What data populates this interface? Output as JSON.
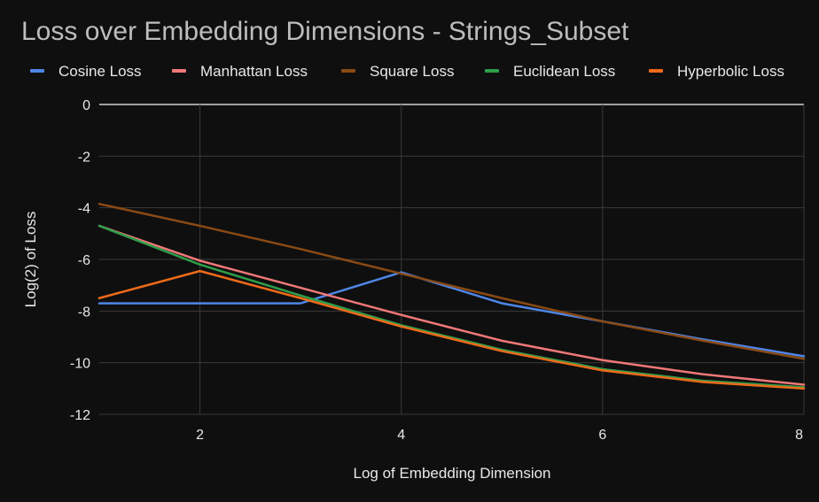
{
  "chart_data": {
    "type": "line",
    "title": "Loss over Embedding Dimensions - Strings_Subset",
    "xlabel": "Log of Embedding Dimension",
    "ylabel": "Log(2) of Loss",
    "x": [
      1,
      2,
      3,
      4,
      5,
      6,
      7,
      8
    ],
    "xlim": [
      1,
      8
    ],
    "ylim": [
      -12,
      0
    ],
    "xticks": [
      2,
      4,
      6,
      8
    ],
    "yticks": [
      0,
      -2,
      -4,
      -6,
      -8,
      -10,
      -12
    ],
    "grid": true,
    "legend_position": "top",
    "series": [
      {
        "name": "Cosine Loss",
        "color": "#4f86e8",
        "values": [
          -7.7,
          -7.7,
          -7.7,
          -6.5,
          -7.7,
          -8.4,
          -9.1,
          -9.75
        ]
      },
      {
        "name": "Manhattan Loss",
        "color": "#f07878",
        "values": [
          -4.7,
          -6.05,
          -7.1,
          -8.15,
          -9.15,
          -9.9,
          -10.45,
          -10.85
        ]
      },
      {
        "name": "Square Loss",
        "color": "#8a4a14",
        "values": [
          -3.85,
          -4.7,
          -5.6,
          -6.55,
          -7.5,
          -8.4,
          -9.15,
          -9.85
        ]
      },
      {
        "name": "Euclidean Loss",
        "color": "#2f9e4a",
        "values": [
          -4.7,
          -6.2,
          -7.4,
          -8.55,
          -9.5,
          -10.25,
          -10.7,
          -10.95
        ]
      },
      {
        "name": "Hyperbolic Loss",
        "color": "#ee6a1a",
        "values": [
          -7.5,
          -6.45,
          -7.5,
          -8.6,
          -9.55,
          -10.3,
          -10.75,
          -11.0
        ]
      }
    ]
  }
}
